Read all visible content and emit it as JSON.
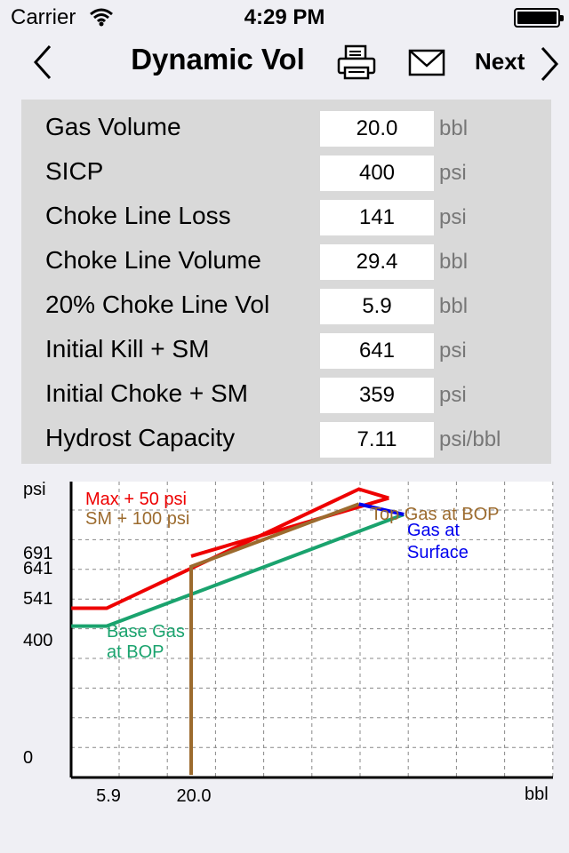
{
  "status_bar": {
    "carrier": "Carrier",
    "time": "4:29 PM"
  },
  "nav": {
    "title": "Dynamic Vol",
    "next_label": "Next"
  },
  "rows": [
    {
      "label": "Gas Volume",
      "value": "20.0",
      "unit": "bbl"
    },
    {
      "label": "SICP",
      "value": "400",
      "unit": "psi"
    },
    {
      "label": "Choke Line Loss",
      "value": "141",
      "unit": "psi"
    },
    {
      "label": "Choke Line Volume",
      "value": "29.4",
      "unit": "bbl"
    },
    {
      "label": "20% Choke Line Vol",
      "value": "5.9",
      "unit": "bbl"
    },
    {
      "label": "Initial Kill + SM",
      "value": "641",
      "unit": "psi"
    },
    {
      "label": "Initial Choke + SM",
      "value": "359",
      "unit": "psi"
    },
    {
      "label": "Hydrost Capacity",
      "value": "7.11",
      "unit": "psi/bbl"
    }
  ],
  "chart_data": {
    "type": "line",
    "ylabel": "psi",
    "xlabel": "bbl",
    "y_ticks": [
      "0",
      "400",
      "541",
      "641",
      "691"
    ],
    "x_ticks": [
      "5.9",
      "20.0"
    ],
    "grid": true,
    "legend": [
      {
        "text": "Max + 50  psi",
        "color": "#ee0000"
      },
      {
        "text": "SM  + 100 psi",
        "color": "#9c6b2e"
      }
    ],
    "annotations": [
      {
        "text": "Base Gas",
        "color": "#1aa36e"
      },
      {
        "text": "at BOP",
        "color": "#1aa36e"
      },
      {
        "text": "Top Gas at BOP",
        "color": "#9c6b2e"
      },
      {
        "text": "Gas at",
        "color": "#0000ee"
      },
      {
        "text": "Surface",
        "color": "#0000ee"
      }
    ],
    "series": [
      {
        "color": "#ee0000",
        "points": [
          [
            0,
            500
          ],
          [
            5.9,
            500
          ],
          [
            48,
            900
          ],
          [
            53,
            870
          ]
        ]
      },
      {
        "color": "#ee0000",
        "points": [
          [
            20,
            675
          ],
          [
            53,
            870
          ]
        ]
      },
      {
        "color": "#1aa36e",
        "points": [
          [
            0,
            440
          ],
          [
            5.9,
            440
          ],
          [
            55.5,
            815
          ]
        ]
      },
      {
        "color": "#9c6b2e",
        "points": [
          [
            20,
            -60
          ],
          [
            20,
            640
          ],
          [
            48,
            850
          ]
        ]
      },
      {
        "color": "#0000ee",
        "points": [
          [
            48,
            850
          ],
          [
            55.5,
            815
          ]
        ]
      }
    ]
  }
}
